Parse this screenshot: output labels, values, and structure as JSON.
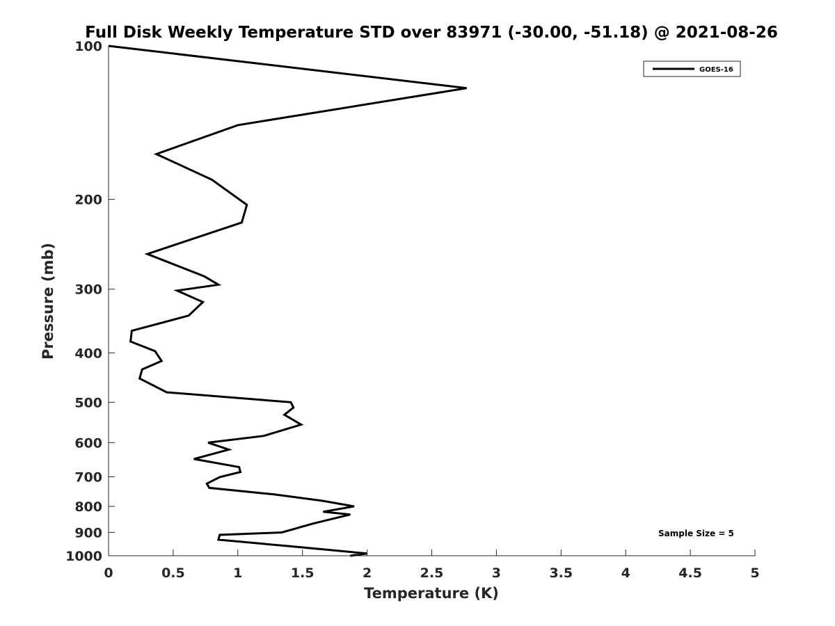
{
  "chart_data": {
    "type": "line",
    "title": "Full Disk Weekly Temperature STD over 83971 (-30.00, -51.18) @ 2021-08-26",
    "xlabel": "Temperature (K)",
    "ylabel": "Pressure (mb)",
    "xlim": [
      0,
      5
    ],
    "ylim": [
      100,
      1000
    ],
    "y_scale": "log",
    "y_reversed": true,
    "grid": false,
    "legend_position": "top-right",
    "x_ticks": [
      0,
      0.5,
      1,
      1.5,
      2,
      2.5,
      3,
      3.5,
      4,
      4.5,
      5
    ],
    "x_tick_labels": [
      "0",
      "0.5",
      "1",
      "1.5",
      "2",
      "2.5",
      "3",
      "3.5",
      "4",
      "4.5",
      "5"
    ],
    "y_ticks": [
      100,
      200,
      300,
      400,
      500,
      600,
      700,
      800,
      900,
      1000
    ],
    "y_tick_labels": [
      "100",
      "200",
      "300",
      "400",
      "500",
      "600",
      "700",
      "800",
      "900",
      "1000"
    ],
    "series": [
      {
        "name": "GOES-16",
        "color": "#000000",
        "points": [
          [
            0.0,
            100
          ],
          [
            2.77,
            121
          ],
          [
            1.0,
            143
          ],
          [
            0.37,
            163
          ],
          [
            0.8,
            183
          ],
          [
            1.07,
            205
          ],
          [
            1.03,
            222
          ],
          [
            0.3,
            256
          ],
          [
            0.74,
            283
          ],
          [
            0.85,
            294
          ],
          [
            0.53,
            302
          ],
          [
            0.73,
            318
          ],
          [
            0.62,
            338
          ],
          [
            0.18,
            362
          ],
          [
            0.17,
            380
          ],
          [
            0.36,
            397
          ],
          [
            0.41,
            415
          ],
          [
            0.26,
            431
          ],
          [
            0.24,
            449
          ],
          [
            0.45,
            478
          ],
          [
            1.41,
            500
          ],
          [
            1.43,
            512
          ],
          [
            1.36,
            529
          ],
          [
            1.49,
            553
          ],
          [
            1.2,
            582
          ],
          [
            0.77,
            600
          ],
          [
            0.93,
            619
          ],
          [
            0.66,
            646
          ],
          [
            1.01,
            670
          ],
          [
            1.02,
            685
          ],
          [
            0.86,
            701
          ],
          [
            0.76,
            722
          ],
          [
            0.78,
            736
          ],
          [
            1.28,
            758
          ],
          [
            1.65,
            780
          ],
          [
            1.9,
            800
          ],
          [
            1.66,
            820
          ],
          [
            1.87,
            830
          ],
          [
            1.58,
            865
          ],
          [
            1.34,
            900
          ],
          [
            0.86,
            910
          ],
          [
            0.85,
            930
          ],
          [
            1.4,
            958
          ],
          [
            2.0,
            990
          ],
          [
            1.87,
            1000
          ]
        ]
      }
    ],
    "annotation": "Sample Size = 5"
  }
}
